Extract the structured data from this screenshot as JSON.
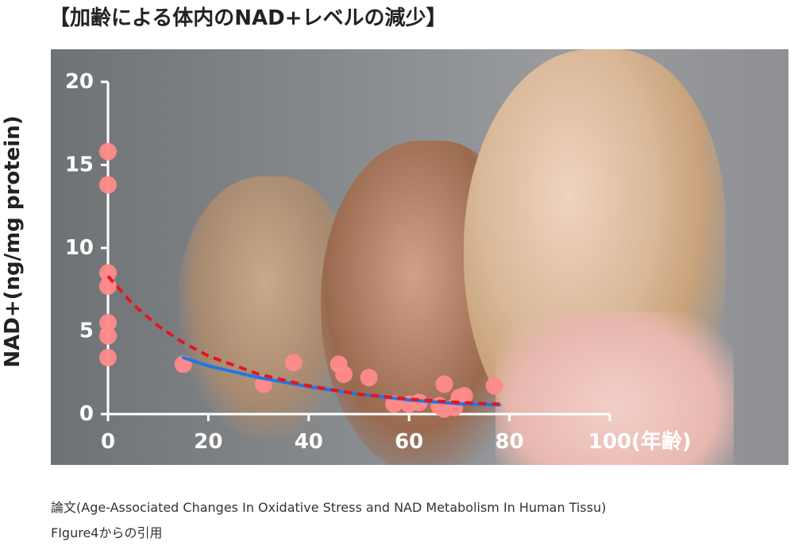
{
  "title": "【加齢による体内のNAD+レベルの減少】",
  "source": {
    "line1": "論文(Age-Associated Changes In Oxidative Stress and NAD Metabolism In Human Tissu)",
    "line2": "FIgure4からの引用"
  },
  "colors": {
    "points": "#ff8a8a",
    "fit_dashed": "#e8141e",
    "fit_solid": "#1e78e6",
    "axis": "#ffffff",
    "background": "#8b8e91"
  },
  "chart_data": {
    "type": "scatter",
    "title": "",
    "xlabel": "(年齢)",
    "ylabel": "NAD+(ng/mg protein)",
    "xlim": [
      0,
      100
    ],
    "ylim": [
      0,
      20
    ],
    "xticks": [
      "0",
      "20",
      "40",
      "60",
      "80",
      "100"
    ],
    "yticks": [
      "0",
      "5",
      "10",
      "15",
      "20"
    ],
    "points": [
      {
        "x": 0,
        "y": 15.8
      },
      {
        "x": 0,
        "y": 13.8
      },
      {
        "x": 0,
        "y": 8.5
      },
      {
        "x": 0,
        "y": 7.7
      },
      {
        "x": 0,
        "y": 5.5
      },
      {
        "x": 0,
        "y": 4.7
      },
      {
        "x": 0,
        "y": 3.4
      },
      {
        "x": 15,
        "y": 3.0
      },
      {
        "x": 31,
        "y": 1.8
      },
      {
        "x": 37,
        "y": 3.1
      },
      {
        "x": 46,
        "y": 3.0
      },
      {
        "x": 47,
        "y": 2.4
      },
      {
        "x": 52,
        "y": 2.2
      },
      {
        "x": 57,
        "y": 0.6
      },
      {
        "x": 60,
        "y": 0.6
      },
      {
        "x": 62,
        "y": 0.7
      },
      {
        "x": 66,
        "y": 0.5
      },
      {
        "x": 67,
        "y": 0.3
      },
      {
        "x": 67,
        "y": 1.8
      },
      {
        "x": 69,
        "y": 0.4
      },
      {
        "x": 70,
        "y": 1.0
      },
      {
        "x": 71,
        "y": 1.1
      },
      {
        "x": 77,
        "y": 1.7
      }
    ],
    "fit_dashed": [
      {
        "x": 0,
        "y": 8.3
      },
      {
        "x": 5,
        "y": 6.6
      },
      {
        "x": 10,
        "y": 5.3
      },
      {
        "x": 15,
        "y": 4.3
      },
      {
        "x": 20,
        "y": 3.5
      },
      {
        "x": 30,
        "y": 2.4
      },
      {
        "x": 40,
        "y": 1.7
      },
      {
        "x": 50,
        "y": 1.2
      },
      {
        "x": 60,
        "y": 0.9
      },
      {
        "x": 70,
        "y": 0.7
      },
      {
        "x": 78,
        "y": 0.6
      }
    ],
    "fit_solid": [
      {
        "x": 15,
        "y": 3.4
      },
      {
        "x": 20,
        "y": 2.9
      },
      {
        "x": 30,
        "y": 2.2
      },
      {
        "x": 40,
        "y": 1.65
      },
      {
        "x": 50,
        "y": 1.2
      },
      {
        "x": 60,
        "y": 0.85
      },
      {
        "x": 70,
        "y": 0.62
      },
      {
        "x": 78,
        "y": 0.55
      }
    ],
    "grid": false
  }
}
